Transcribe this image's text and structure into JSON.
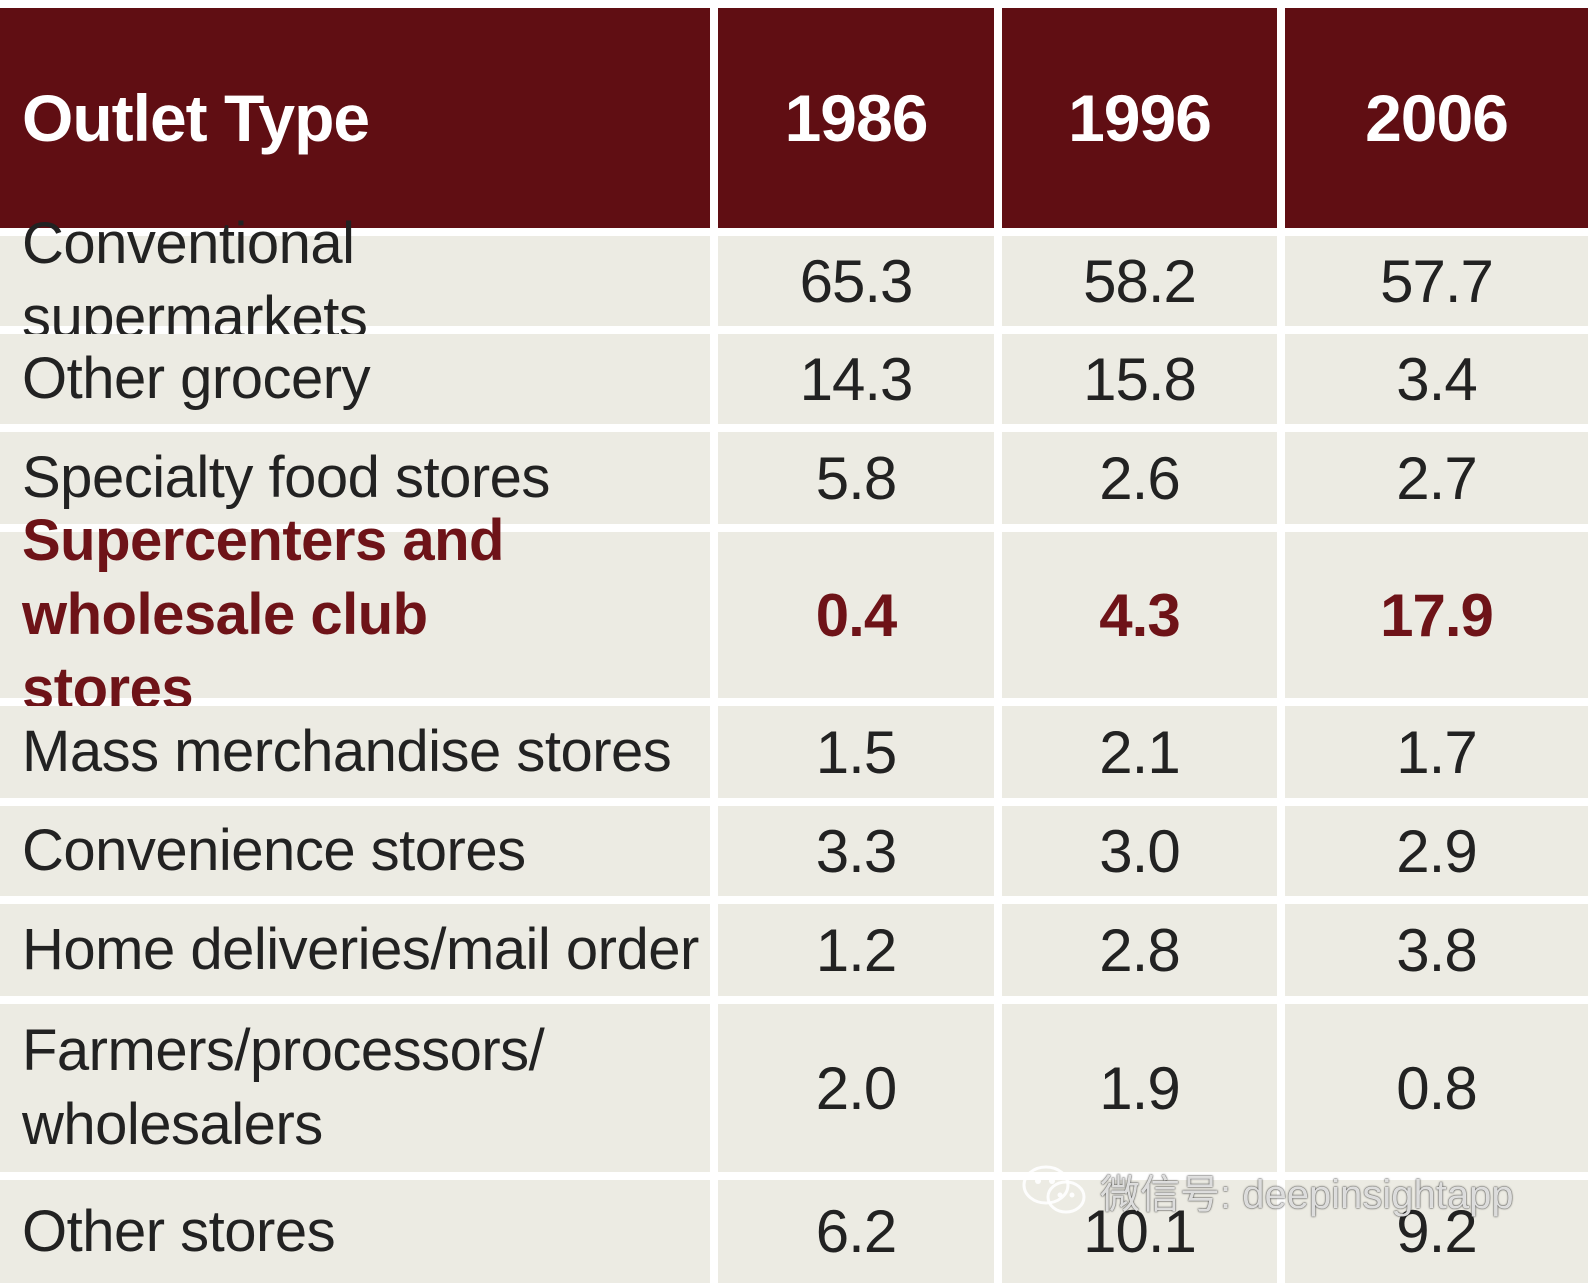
{
  "chart_data": {
    "type": "table",
    "columns": [
      "Outlet Type",
      "1986",
      "1996",
      "2006"
    ],
    "rows": [
      {
        "label": "Conventional supermarkets",
        "values": [
          "65.3",
          "58.2",
          "57.7"
        ],
        "highlight": false
      },
      {
        "label": "Other grocery",
        "values": [
          "14.3",
          "15.8",
          "3.4"
        ],
        "highlight": false
      },
      {
        "label": "Specialty food stores",
        "values": [
          "5.8",
          "2.6",
          "2.7"
        ],
        "highlight": false
      },
      {
        "label": "Supercenters and wholesale club stores",
        "values": [
          "0.4",
          "4.3",
          "17.9"
        ],
        "highlight": true
      },
      {
        "label": "Mass merchandise stores",
        "values": [
          "1.5",
          "2.1",
          "1.7"
        ],
        "highlight": false
      },
      {
        "label": "Convenience stores",
        "values": [
          "3.3",
          "3.0",
          "2.9"
        ],
        "highlight": false
      },
      {
        "label": "Home deliveries/mail order",
        "values": [
          "1.2",
          "2.8",
          "3.8"
        ],
        "highlight": false
      },
      {
        "label": "Farmers/processors/ wholesalers",
        "values": [
          "2.0",
          "1.9",
          "0.8"
        ],
        "highlight": false
      },
      {
        "label": "Other stores",
        "values": [
          "6.2",
          "10.1",
          "9.2"
        ],
        "highlight": false
      }
    ]
  },
  "colors": {
    "header_bg": "#600e13",
    "row_bg": "#ecebe3",
    "highlight_text": "#6e1318",
    "text": "#222222"
  },
  "watermark": {
    "text": "微信号: deepinsightapp",
    "icon": "wechat-icon"
  }
}
